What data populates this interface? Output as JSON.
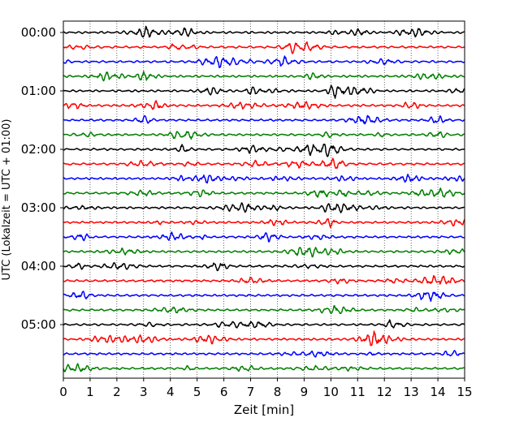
{
  "chart_data": {
    "type": "line",
    "title": "",
    "xlabel": "Zeit  [min]",
    "ylabel": "UTC (Lokalzeit = UTC + 01:00)",
    "xlim": [
      0,
      15
    ],
    "x_ticks": [
      0,
      1,
      2,
      3,
      4,
      5,
      6,
      7,
      8,
      9,
      10,
      11,
      12,
      13,
      14,
      15
    ],
    "y_ticks": [
      {
        "label": "00:00",
        "trace": 0
      },
      {
        "label": "01:00",
        "trace": 4
      },
      {
        "label": "02:00",
        "trace": 8
      },
      {
        "label": "03:00",
        "trace": 12
      },
      {
        "label": "04:00",
        "trace": 16
      },
      {
        "label": "05:00",
        "trace": 20
      }
    ],
    "trace_count": 24,
    "trace_interval_min": 15,
    "trace_colors": [
      "#000000",
      "#ff0000",
      "#0000ff",
      "#008000"
    ],
    "grid": "vertical dotted",
    "legend": "none"
  }
}
